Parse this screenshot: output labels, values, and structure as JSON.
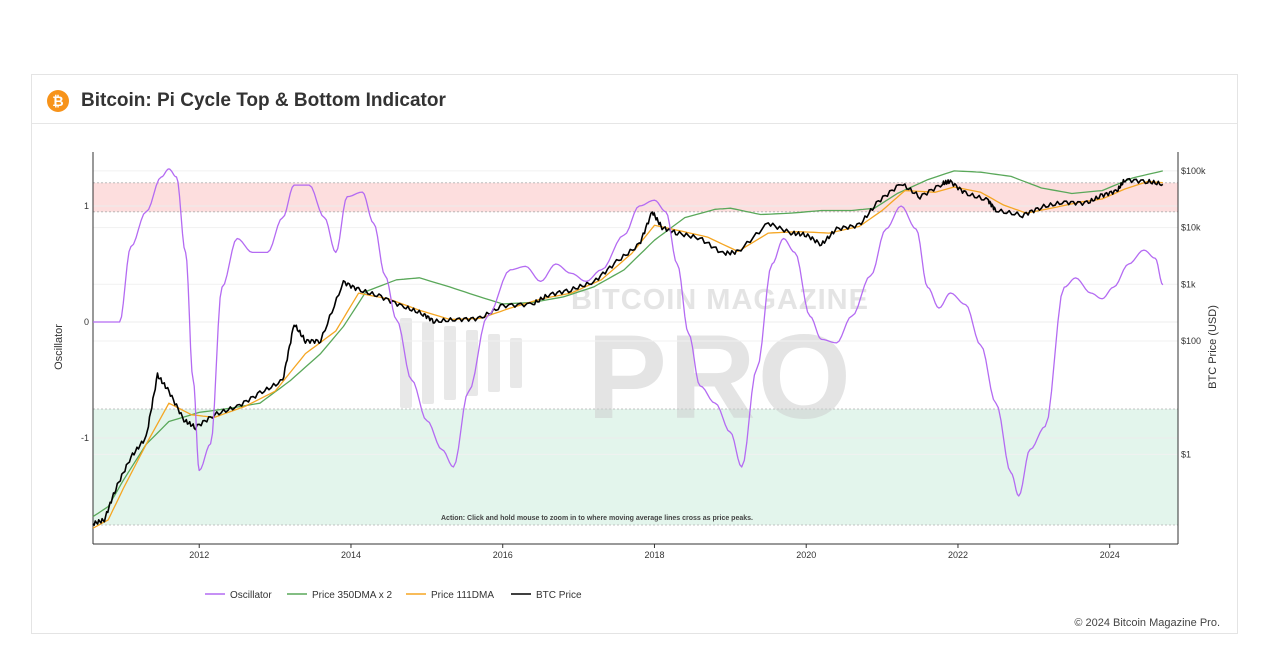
{
  "title": "Bitcoin: Pi Cycle Top & Bottom Indicator",
  "icon": "bitcoin-icon",
  "copyright": "© 2024 Bitcoin Magazine Pro.",
  "watermark": {
    "line1": "BITCOIN MAGAZINE",
    "line2": "PRO"
  },
  "annotation": "Action: Click and hold mouse to zoom in to where moving average lines cross as price peaks.",
  "colors": {
    "oscillator": "#b46bf2",
    "dma350": "#5aa85a",
    "dma111": "#f5a623",
    "price": "#000000",
    "top_band": "#fddede",
    "bottom_band": "#e3f5ec"
  },
  "chart_data": {
    "type": "line",
    "xlabel": "",
    "ylabel_left": "Oscillator",
    "ylabel_right": "BTC Price (USD)",
    "x_ticks": [
      "2012",
      "2014",
      "2016",
      "2018",
      "2020",
      "2022",
      "2024"
    ],
    "y_left_ticks": [
      "1",
      "0",
      "-1"
    ],
    "y_right_ticks": [
      "$100k",
      "$10k",
      "$1k",
      "$100",
      "$1"
    ],
    "y_right_scale": "log",
    "top_band_oscillator": [
      0.95,
      1.2
    ],
    "bottom_band_oscillator": [
      -1.75,
      -0.75
    ],
    "legend": [
      "Oscillator",
      "Price 350DMA x 2",
      "Price 111DMA",
      "BTC Price"
    ],
    "legend_position": "bottom",
    "series": [
      {
        "name": "Oscillator",
        "axis": "left",
        "points": [
          [
            2010.6,
            0
          ],
          [
            2010.95,
            0
          ],
          [
            2011.1,
            0.65
          ],
          [
            2011.3,
            0.95
          ],
          [
            2011.5,
            1.25
          ],
          [
            2011.6,
            1.32
          ],
          [
            2011.7,
            1.25
          ],
          [
            2011.82,
            0.6
          ],
          [
            2011.92,
            -0.5
          ],
          [
            2012.0,
            -1.28
          ],
          [
            2012.15,
            -1.05
          ],
          [
            2012.3,
            0.3
          ],
          [
            2012.5,
            0.72
          ],
          [
            2012.7,
            0.6
          ],
          [
            2012.9,
            0.6
          ],
          [
            2013.1,
            0.9
          ],
          [
            2013.25,
            1.18
          ],
          [
            2013.45,
            1.18
          ],
          [
            2013.65,
            0.9
          ],
          [
            2013.8,
            0.6
          ],
          [
            2013.95,
            1.08
          ],
          [
            2014.15,
            1.12
          ],
          [
            2014.3,
            0.85
          ],
          [
            2014.45,
            0.4
          ],
          [
            2014.6,
            0.02
          ],
          [
            2014.8,
            -0.5
          ],
          [
            2015.0,
            -0.85
          ],
          [
            2015.2,
            -1.1
          ],
          [
            2015.35,
            -1.25
          ],
          [
            2015.55,
            -0.6
          ],
          [
            2015.8,
            0.05
          ],
          [
            2016.1,
            0.45
          ],
          [
            2016.3,
            0.48
          ],
          [
            2016.5,
            0.35
          ],
          [
            2016.7,
            0.5
          ],
          [
            2016.9,
            0.42
          ],
          [
            2017.1,
            0.35
          ],
          [
            2017.3,
            0.45
          ],
          [
            2017.6,
            0.75
          ],
          [
            2017.8,
            1.0
          ],
          [
            2018.0,
            1.05
          ],
          [
            2018.15,
            0.95
          ],
          [
            2018.3,
            0.5
          ],
          [
            2018.45,
            -0.1
          ],
          [
            2018.6,
            -0.55
          ],
          [
            2018.8,
            -0.7
          ],
          [
            2019.0,
            -0.95
          ],
          [
            2019.15,
            -1.25
          ],
          [
            2019.35,
            -0.4
          ],
          [
            2019.55,
            0.5
          ],
          [
            2019.7,
            0.72
          ],
          [
            2019.85,
            0.6
          ],
          [
            2020.05,
            0.05
          ],
          [
            2020.2,
            -0.15
          ],
          [
            2020.4,
            -0.18
          ],
          [
            2020.6,
            0.05
          ],
          [
            2020.85,
            0.4
          ],
          [
            2021.05,
            0.8
          ],
          [
            2021.25,
            1.0
          ],
          [
            2021.45,
            0.8
          ],
          [
            2021.6,
            0.3
          ],
          [
            2021.75,
            0.12
          ],
          [
            2021.9,
            0.25
          ],
          [
            2022.1,
            0.15
          ],
          [
            2022.3,
            -0.2
          ],
          [
            2022.5,
            -0.7
          ],
          [
            2022.7,
            -1.3
          ],
          [
            2022.8,
            -1.5
          ],
          [
            2022.95,
            -1.1
          ],
          [
            2023.15,
            -0.9
          ],
          [
            2023.4,
            0.3
          ],
          [
            2023.55,
            0.38
          ],
          [
            2023.75,
            0.25
          ],
          [
            2023.9,
            0.2
          ],
          [
            2024.05,
            0.3
          ],
          [
            2024.25,
            0.5
          ],
          [
            2024.45,
            0.62
          ],
          [
            2024.6,
            0.55
          ],
          [
            2024.7,
            0.32
          ]
        ]
      },
      {
        "name": "Price 350DMA x 2",
        "axis": "right",
        "points": [
          [
            2010.6,
            0.08
          ],
          [
            2010.8,
            0.12
          ],
          [
            2011.0,
            0.35
          ],
          [
            2011.3,
            1.5
          ],
          [
            2011.6,
            3.8
          ],
          [
            2012.0,
            5.5
          ],
          [
            2012.4,
            6.5
          ],
          [
            2012.8,
            8
          ],
          [
            2013.2,
            20
          ],
          [
            2013.6,
            60
          ],
          [
            2013.9,
            180
          ],
          [
            2014.2,
            750
          ],
          [
            2014.6,
            1200
          ],
          [
            2014.9,
            1300
          ],
          [
            2015.3,
            900
          ],
          [
            2015.7,
            600
          ],
          [
            2016.0,
            450
          ],
          [
            2016.4,
            480
          ],
          [
            2016.8,
            600
          ],
          [
            2017.2,
            900
          ],
          [
            2017.6,
            1800
          ],
          [
            2018.0,
            6000
          ],
          [
            2018.4,
            15000
          ],
          [
            2018.8,
            21000
          ],
          [
            2019.0,
            22000
          ],
          [
            2019.4,
            17000
          ],
          [
            2019.8,
            18000
          ],
          [
            2020.2,
            20000
          ],
          [
            2020.6,
            20000
          ],
          [
            2020.9,
            22000
          ],
          [
            2021.2,
            40000
          ],
          [
            2021.6,
            70000
          ],
          [
            2021.95,
            100000
          ],
          [
            2022.3,
            95000
          ],
          [
            2022.7,
            80000
          ],
          [
            2023.1,
            50000
          ],
          [
            2023.5,
            40000
          ],
          [
            2023.9,
            45000
          ],
          [
            2024.3,
            75000
          ],
          [
            2024.7,
            100000
          ]
        ]
      },
      {
        "name": "Price 111DMA",
        "axis": "right",
        "points": [
          [
            2010.6,
            0.05
          ],
          [
            2010.8,
            0.07
          ],
          [
            2011.0,
            0.25
          ],
          [
            2011.3,
            1.5
          ],
          [
            2011.6,
            8
          ],
          [
            2011.9,
            5
          ],
          [
            2012.2,
            4.5
          ],
          [
            2012.6,
            7
          ],
          [
            2013.0,
            13
          ],
          [
            2013.4,
            60
          ],
          [
            2013.8,
            150
          ],
          [
            2014.1,
            700
          ],
          [
            2014.5,
            550
          ],
          [
            2014.9,
            350
          ],
          [
            2015.3,
            240
          ],
          [
            2015.7,
            250
          ],
          [
            2016.1,
            380
          ],
          [
            2016.5,
            550
          ],
          [
            2016.9,
            700
          ],
          [
            2017.3,
            1200
          ],
          [
            2017.7,
            3500
          ],
          [
            2018.0,
            11000
          ],
          [
            2018.3,
            9000
          ],
          [
            2018.7,
            6800
          ],
          [
            2019.1,
            3800
          ],
          [
            2019.5,
            8000
          ],
          [
            2019.9,
            8500
          ],
          [
            2020.3,
            8000
          ],
          [
            2020.7,
            10500
          ],
          [
            2021.0,
            20000
          ],
          [
            2021.3,
            45000
          ],
          [
            2021.7,
            42000
          ],
          [
            2021.95,
            52000
          ],
          [
            2022.3,
            42000
          ],
          [
            2022.6,
            25000
          ],
          [
            2022.9,
            18000
          ],
          [
            2023.3,
            23000
          ],
          [
            2023.6,
            28000
          ],
          [
            2023.9,
            32000
          ],
          [
            2024.2,
            48000
          ],
          [
            2024.5,
            65000
          ],
          [
            2024.7,
            62000
          ]
        ]
      },
      {
        "name": "BTC Price",
        "axis": "right",
        "points": [
          [
            2010.6,
            0.06
          ],
          [
            2010.75,
            0.07
          ],
          [
            2010.9,
            0.25
          ],
          [
            2011.1,
            0.9
          ],
          [
            2011.3,
            2
          ],
          [
            2011.45,
            25
          ],
          [
            2011.6,
            13
          ],
          [
            2011.8,
            4
          ],
          [
            2011.95,
            3
          ],
          [
            2012.2,
            5
          ],
          [
            2012.5,
            7
          ],
          [
            2012.8,
            12
          ],
          [
            2013.1,
            20
          ],
          [
            2013.25,
            200
          ],
          [
            2013.4,
            100
          ],
          [
            2013.6,
            100
          ],
          [
            2013.9,
            1100
          ],
          [
            2014.1,
            800
          ],
          [
            2014.4,
            600
          ],
          [
            2014.7,
            400
          ],
          [
            2014.95,
            300
          ],
          [
            2015.1,
            220
          ],
          [
            2015.4,
            240
          ],
          [
            2015.7,
            250
          ],
          [
            2016.0,
            420
          ],
          [
            2016.4,
            450
          ],
          [
            2016.6,
            650
          ],
          [
            2016.9,
            800
          ],
          [
            2017.2,
            1100
          ],
          [
            2017.5,
            2500
          ],
          [
            2017.8,
            5000
          ],
          [
            2017.97,
            19000
          ],
          [
            2018.1,
            10000
          ],
          [
            2018.3,
            8000
          ],
          [
            2018.6,
            6500
          ],
          [
            2018.9,
            3500
          ],
          [
            2019.1,
            3700
          ],
          [
            2019.5,
            12000
          ],
          [
            2019.8,
            8000
          ],
          [
            2020.0,
            7500
          ],
          [
            2020.2,
            5000
          ],
          [
            2020.4,
            9500
          ],
          [
            2020.7,
            11000
          ],
          [
            2020.95,
            29000
          ],
          [
            2021.25,
            60000
          ],
          [
            2021.5,
            35000
          ],
          [
            2021.8,
            60000
          ],
          [
            2021.9,
            65000
          ],
          [
            2022.1,
            40000
          ],
          [
            2022.4,
            30000
          ],
          [
            2022.5,
            20000
          ],
          [
            2022.85,
            16500
          ],
          [
            2023.1,
            23000
          ],
          [
            2023.4,
            28000
          ],
          [
            2023.7,
            27000
          ],
          [
            2023.9,
            37000
          ],
          [
            2024.1,
            45000
          ],
          [
            2024.2,
            70000
          ],
          [
            2024.5,
            65000
          ],
          [
            2024.7,
            58000
          ]
        ]
      }
    ]
  }
}
